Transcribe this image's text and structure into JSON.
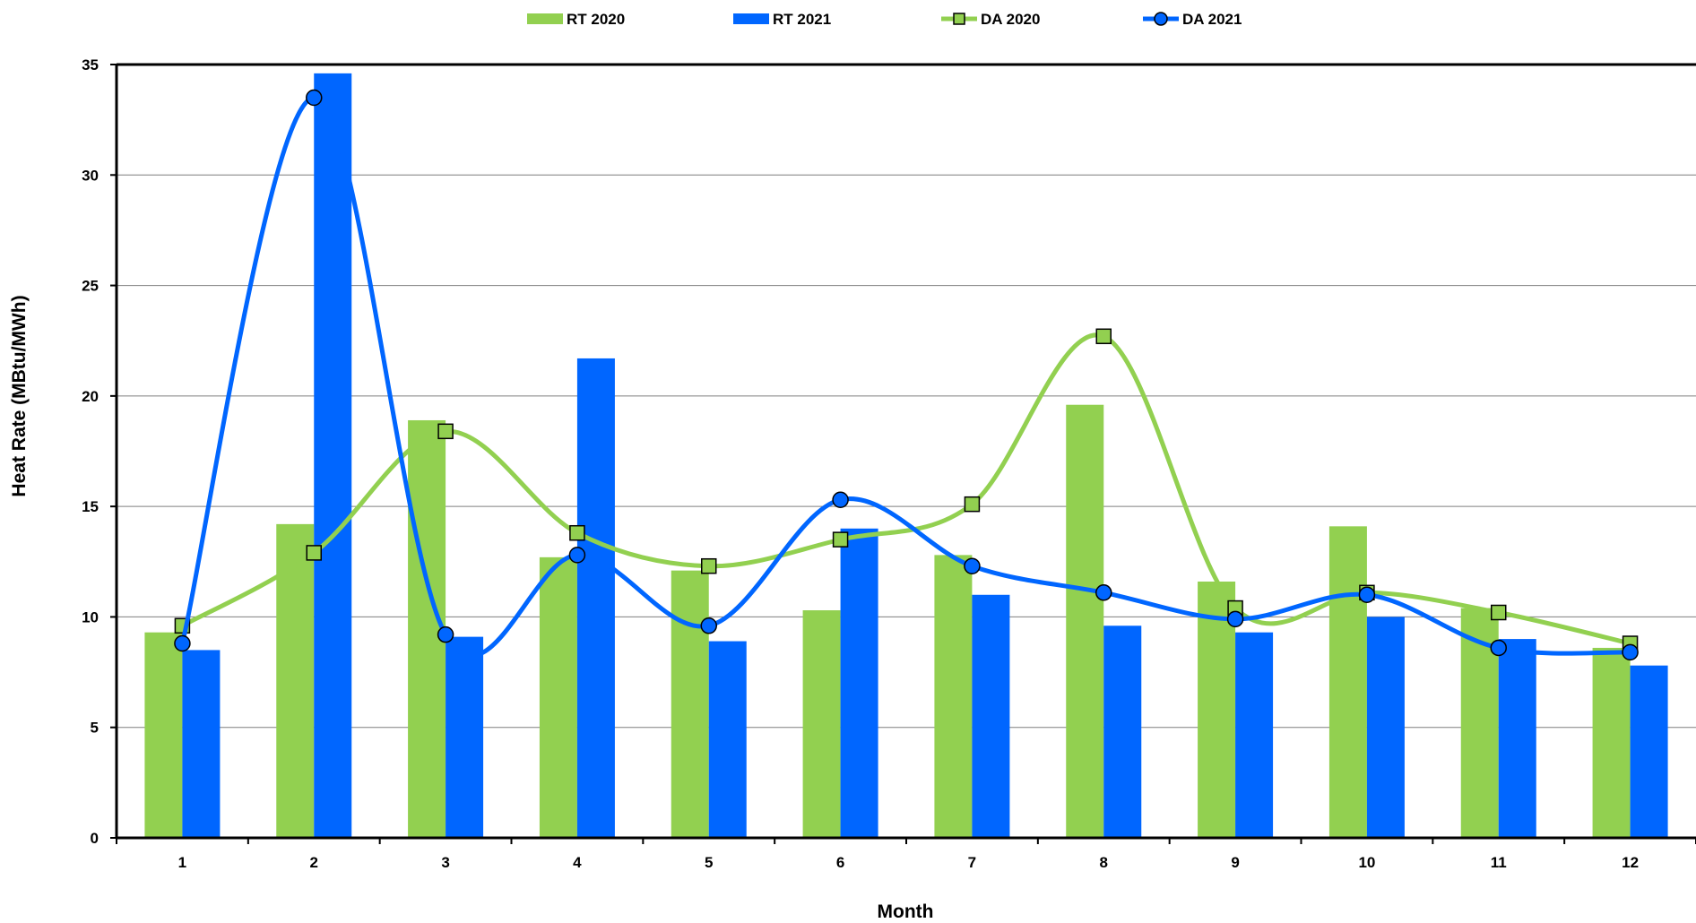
{
  "chart_data": {
    "type": "bar",
    "title": "",
    "xlabel": "Month",
    "ylabel": "Heat Rate (MBtu/MWh)",
    "ylim": [
      0,
      35
    ],
    "yticks": [
      "0",
      "5",
      "10",
      "15",
      "20",
      "25",
      "30",
      "35"
    ],
    "categories": [
      "1",
      "2",
      "3",
      "4",
      "5",
      "6",
      "7",
      "8",
      "9",
      "10",
      "11",
      "12"
    ],
    "grid": true,
    "legend_position": "top",
    "bar_series": [
      {
        "name": "RT 2020",
        "color": "#92d050",
        "values": [
          9.3,
          14.2,
          18.9,
          12.7,
          12.1,
          10.3,
          12.8,
          19.6,
          11.6,
          14.1,
          10.4,
          8.6
        ]
      },
      {
        "name": "RT 2021",
        "color": "#0066ff",
        "values": [
          8.5,
          34.6,
          9.1,
          21.7,
          8.9,
          14.0,
          11.0,
          9.6,
          9.3,
          10.0,
          9.0,
          7.8
        ]
      }
    ],
    "line_series": [
      {
        "name": "DA 2020",
        "color": "#92d050",
        "marker": "square",
        "values": [
          9.6,
          12.9,
          18.4,
          13.8,
          12.3,
          13.5,
          15.1,
          22.7,
          10.4,
          11.1,
          10.2,
          8.8
        ]
      },
      {
        "name": "DA 2021",
        "color": "#0066ff",
        "marker": "circle",
        "values": [
          8.8,
          33.5,
          9.2,
          12.8,
          9.6,
          15.3,
          12.3,
          11.1,
          9.9,
          11.0,
          8.6,
          8.4
        ]
      }
    ]
  }
}
